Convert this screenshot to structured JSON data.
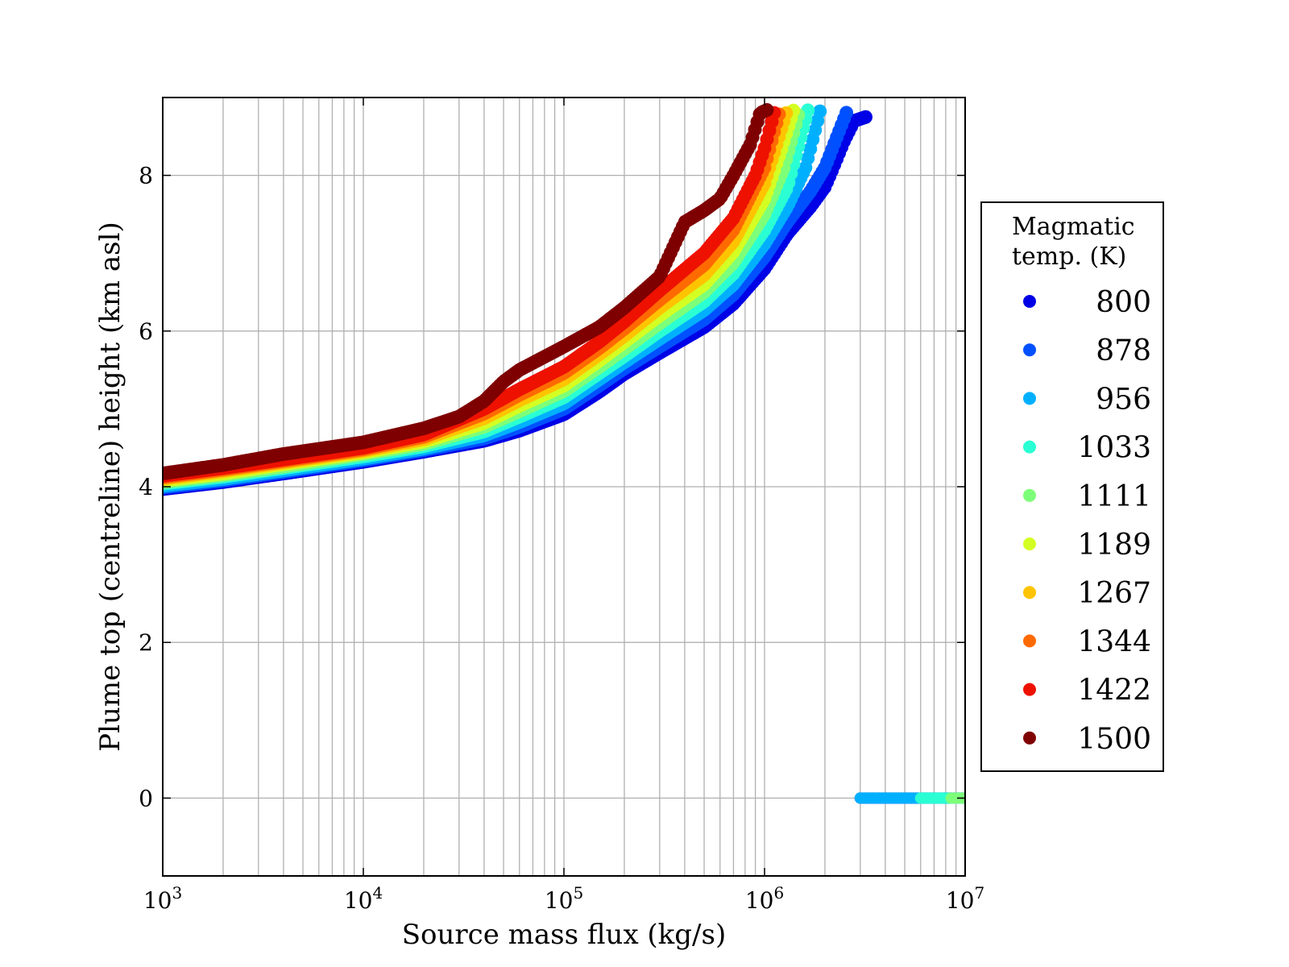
{
  "chart_data": {
    "type": "scatter",
    "title": "",
    "xlabel": "Source mass flux (kg/s)",
    "ylabel": "Plume top (centreline) height (km asl)",
    "xscale": "log",
    "xlim": [
      1000,
      10000000
    ],
    "ylim": [
      -1,
      9
    ],
    "grid": true,
    "x_ticks": [
      {
        "base": "10",
        "exp": "3",
        "value": 1000
      },
      {
        "base": "10",
        "exp": "4",
        "value": 10000
      },
      {
        "base": "10",
        "exp": "5",
        "value": 100000
      },
      {
        "base": "10",
        "exp": "6",
        "value": 1000000
      },
      {
        "base": "10",
        "exp": "7",
        "value": 10000000
      }
    ],
    "y_ticks": [
      {
        "label": "0",
        "value": 0
      },
      {
        "label": "2",
        "value": 2
      },
      {
        "label": "4",
        "value": 4
      },
      {
        "label": "6",
        "value": 6
      },
      {
        "label": "8",
        "value": 8
      }
    ],
    "legend": {
      "title_lines": [
        "Magmatic",
        "temp. (K)"
      ],
      "placement": "outside-right"
    },
    "marker": "circle",
    "series": [
      {
        "name": "800",
        "color": "#0000e6",
        "x_max": 3200000,
        "collapse_x_range": [
          3000000,
          10000000
        ],
        "points": [
          [
            1000,
            3.97
          ],
          [
            2000,
            4.06
          ],
          [
            4000,
            4.17
          ],
          [
            10000,
            4.32
          ],
          [
            20000,
            4.45
          ],
          [
            40000,
            4.59
          ],
          [
            60000,
            4.72
          ],
          [
            100000,
            4.93
          ],
          [
            150000,
            5.22
          ],
          [
            200000,
            5.45
          ],
          [
            300000,
            5.72
          ],
          [
            500000,
            6.05
          ],
          [
            700000,
            6.35
          ],
          [
            1000000,
            6.8
          ],
          [
            1300000,
            7.25
          ],
          [
            1700000,
            7.6
          ],
          [
            2000000,
            7.85
          ],
          [
            2200000,
            8.1
          ],
          [
            2500000,
            8.45
          ],
          [
            2800000,
            8.7
          ],
          [
            3200000,
            8.75
          ]
        ]
      },
      {
        "name": "878",
        "color": "#0050ff",
        "x_max": 2600000,
        "collapse_x_range": [
          3000000,
          10000000
        ],
        "points": [
          [
            1000,
            3.99
          ],
          [
            2000,
            4.08
          ],
          [
            4000,
            4.19
          ],
          [
            10000,
            4.34
          ],
          [
            20000,
            4.47
          ],
          [
            40000,
            4.62
          ],
          [
            60000,
            4.77
          ],
          [
            100000,
            5.0
          ],
          [
            150000,
            5.3
          ],
          [
            200000,
            5.52
          ],
          [
            300000,
            5.8
          ],
          [
            500000,
            6.15
          ],
          [
            700000,
            6.47
          ],
          [
            1000000,
            6.95
          ],
          [
            1300000,
            7.4
          ],
          [
            1700000,
            7.8
          ],
          [
            2000000,
            8.1
          ],
          [
            2300000,
            8.5
          ],
          [
            2600000,
            8.85
          ]
        ]
      },
      {
        "name": "956",
        "color": "#00b0ff",
        "x_max": 1900000,
        "collapse_x_range": [
          3000000,
          10000000
        ],
        "points": [
          [
            1000,
            4.01
          ],
          [
            2000,
            4.1
          ],
          [
            4000,
            4.21
          ],
          [
            10000,
            4.36
          ],
          [
            20000,
            4.49
          ],
          [
            40000,
            4.66
          ],
          [
            60000,
            4.83
          ],
          [
            100000,
            5.07
          ],
          [
            150000,
            5.38
          ],
          [
            200000,
            5.6
          ],
          [
            300000,
            5.9
          ],
          [
            500000,
            6.27
          ],
          [
            700000,
            6.6
          ],
          [
            1000000,
            7.12
          ],
          [
            1300000,
            7.6
          ],
          [
            1600000,
            8.1
          ],
          [
            1900000,
            8.85
          ]
        ]
      },
      {
        "name": "1033",
        "color": "#2affd4",
        "x_max": 1650000,
        "collapse_x_range": [
          6000000,
          10000000
        ],
        "points": [
          [
            1000,
            4.04
          ],
          [
            2000,
            4.13
          ],
          [
            4000,
            4.24
          ],
          [
            10000,
            4.39
          ],
          [
            20000,
            4.52
          ],
          [
            40000,
            4.71
          ],
          [
            60000,
            4.9
          ],
          [
            100000,
            5.15
          ],
          [
            150000,
            5.46
          ],
          [
            200000,
            5.68
          ],
          [
            300000,
            6.0
          ],
          [
            500000,
            6.38
          ],
          [
            700000,
            6.74
          ],
          [
            1000000,
            7.3
          ],
          [
            1300000,
            7.85
          ],
          [
            1650000,
            8.85
          ]
        ]
      },
      {
        "name": "1111",
        "color": "#7dff7a",
        "x_max": 1500000,
        "collapse_x_range": [
          8500000,
          10000000
        ],
        "points": [
          [
            1000,
            4.06
          ],
          [
            2000,
            4.15
          ],
          [
            4000,
            4.26
          ],
          [
            10000,
            4.42
          ],
          [
            20000,
            4.55
          ],
          [
            40000,
            4.77
          ],
          [
            60000,
            4.97
          ],
          [
            100000,
            5.23
          ],
          [
            150000,
            5.54
          ],
          [
            200000,
            5.77
          ],
          [
            300000,
            6.1
          ],
          [
            500000,
            6.5
          ],
          [
            700000,
            6.88
          ],
          [
            1000000,
            7.5
          ],
          [
            1250000,
            8.1
          ],
          [
            1500000,
            8.85
          ]
        ]
      },
      {
        "name": "1189",
        "color": "#d4ff23",
        "x_max": 1400000,
        "collapse_x_range": null,
        "points": [
          [
            1000,
            4.08
          ],
          [
            2000,
            4.17
          ],
          [
            4000,
            4.29
          ],
          [
            10000,
            4.44
          ],
          [
            20000,
            4.58
          ],
          [
            40000,
            4.82
          ],
          [
            60000,
            5.04
          ],
          [
            100000,
            5.3
          ],
          [
            150000,
            5.62
          ],
          [
            200000,
            5.86
          ],
          [
            300000,
            6.2
          ],
          [
            500000,
            6.6
          ],
          [
            700000,
            7.02
          ],
          [
            1000000,
            7.7
          ],
          [
            1200000,
            8.3
          ],
          [
            1400000,
            8.85
          ]
        ]
      },
      {
        "name": "1267",
        "color": "#ffc400",
        "x_max": 1300000,
        "collapse_x_range": null,
        "points": [
          [
            1000,
            4.1
          ],
          [
            2000,
            4.2
          ],
          [
            4000,
            4.31
          ],
          [
            10000,
            4.46
          ],
          [
            20000,
            4.61
          ],
          [
            40000,
            4.88
          ],
          [
            60000,
            5.11
          ],
          [
            100000,
            5.38
          ],
          [
            150000,
            5.7
          ],
          [
            200000,
            5.94
          ],
          [
            300000,
            6.3
          ],
          [
            500000,
            6.72
          ],
          [
            700000,
            7.15
          ],
          [
            1000000,
            7.9
          ],
          [
            1150000,
            8.4
          ],
          [
            1300000,
            8.85
          ]
        ]
      },
      {
        "name": "1344",
        "color": "#ff6a00",
        "x_max": 1200000,
        "collapse_x_range": null,
        "points": [
          [
            1000,
            4.12
          ],
          [
            2000,
            4.22
          ],
          [
            4000,
            4.33
          ],
          [
            10000,
            4.48
          ],
          [
            20000,
            4.64
          ],
          [
            40000,
            4.94
          ],
          [
            60000,
            5.18
          ],
          [
            100000,
            5.46
          ],
          [
            150000,
            5.78
          ],
          [
            200000,
            6.03
          ],
          [
            300000,
            6.4
          ],
          [
            500000,
            6.85
          ],
          [
            700000,
            7.3
          ],
          [
            1000000,
            8.1
          ],
          [
            1100000,
            8.5
          ],
          [
            1200000,
            8.85
          ]
        ]
      },
      {
        "name": "1422",
        "color": "#ee1100",
        "x_max": 1130000,
        "collapse_x_range": null,
        "points": [
          [
            1000,
            4.14
          ],
          [
            2000,
            4.24
          ],
          [
            4000,
            4.35
          ],
          [
            10000,
            4.5
          ],
          [
            20000,
            4.67
          ],
          [
            40000,
            5.0
          ],
          [
            60000,
            5.25
          ],
          [
            100000,
            5.54
          ],
          [
            150000,
            5.86
          ],
          [
            200000,
            6.12
          ],
          [
            300000,
            6.52
          ],
          [
            500000,
            7.0
          ],
          [
            700000,
            7.45
          ],
          [
            900000,
            8.0
          ],
          [
            1000000,
            8.35
          ],
          [
            1130000,
            8.85
          ]
        ]
      },
      {
        "name": "1500",
        "color": "#7f0000",
        "x_max": 1050000,
        "collapse_x_range": null,
        "points": [
          [
            1000,
            4.17
          ],
          [
            2000,
            4.28
          ],
          [
            4000,
            4.42
          ],
          [
            10000,
            4.57
          ],
          [
            20000,
            4.75
          ],
          [
            30000,
            4.9
          ],
          [
            40000,
            5.1
          ],
          [
            50000,
            5.35
          ],
          [
            60000,
            5.5
          ],
          [
            100000,
            5.8
          ],
          [
            150000,
            6.05
          ],
          [
            200000,
            6.3
          ],
          [
            300000,
            6.7
          ],
          [
            400000,
            7.4
          ],
          [
            500000,
            7.55
          ],
          [
            600000,
            7.7
          ],
          [
            700000,
            8.0
          ],
          [
            850000,
            8.4
          ],
          [
            950000,
            8.8
          ],
          [
            1050000,
            8.85
          ]
        ]
      }
    ]
  }
}
